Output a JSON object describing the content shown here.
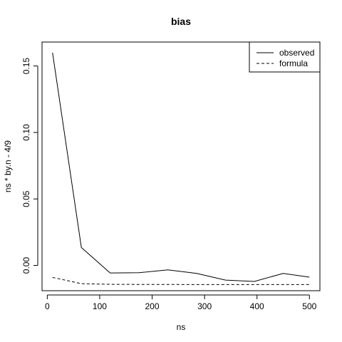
{
  "chart_data": {
    "type": "line",
    "title": "bias",
    "xlabel": "ns",
    "ylabel": "ns * by.n - 4/9",
    "xlim": [
      -10,
      520
    ],
    "ylim": [
      -0.019,
      0.168
    ],
    "x_ticks": [
      0,
      100,
      200,
      300,
      400,
      500
    ],
    "x_tick_labels": [
      "0",
      "100",
      "200",
      "300",
      "400",
      "500"
    ],
    "y_ticks": [
      0.0,
      0.05,
      0.1,
      0.15
    ],
    "y_tick_labels": [
      "0.00",
      "0.05",
      "0.10",
      "0.15"
    ],
    "grid": false,
    "legend_position": "top-right",
    "series": [
      {
        "name": "observed",
        "line_style": "solid",
        "color": "#000000",
        "x": [
          10,
          65,
          120,
          175,
          230,
          285,
          340,
          395,
          450,
          500
        ],
        "y": [
          0.16,
          0.0135,
          -0.0057,
          -0.0055,
          -0.0033,
          -0.006,
          -0.011,
          -0.012,
          -0.006,
          -0.0088
        ]
      },
      {
        "name": "formula",
        "line_style": "dashed",
        "color": "#000000",
        "x": [
          10,
          65,
          120,
          175,
          230,
          285,
          340,
          395,
          450,
          500
        ],
        "y": [
          -0.009,
          -0.0137,
          -0.0142,
          -0.0143,
          -0.0143,
          -0.0144,
          -0.0144,
          -0.0144,
          -0.0144,
          -0.0144
        ]
      }
    ]
  }
}
